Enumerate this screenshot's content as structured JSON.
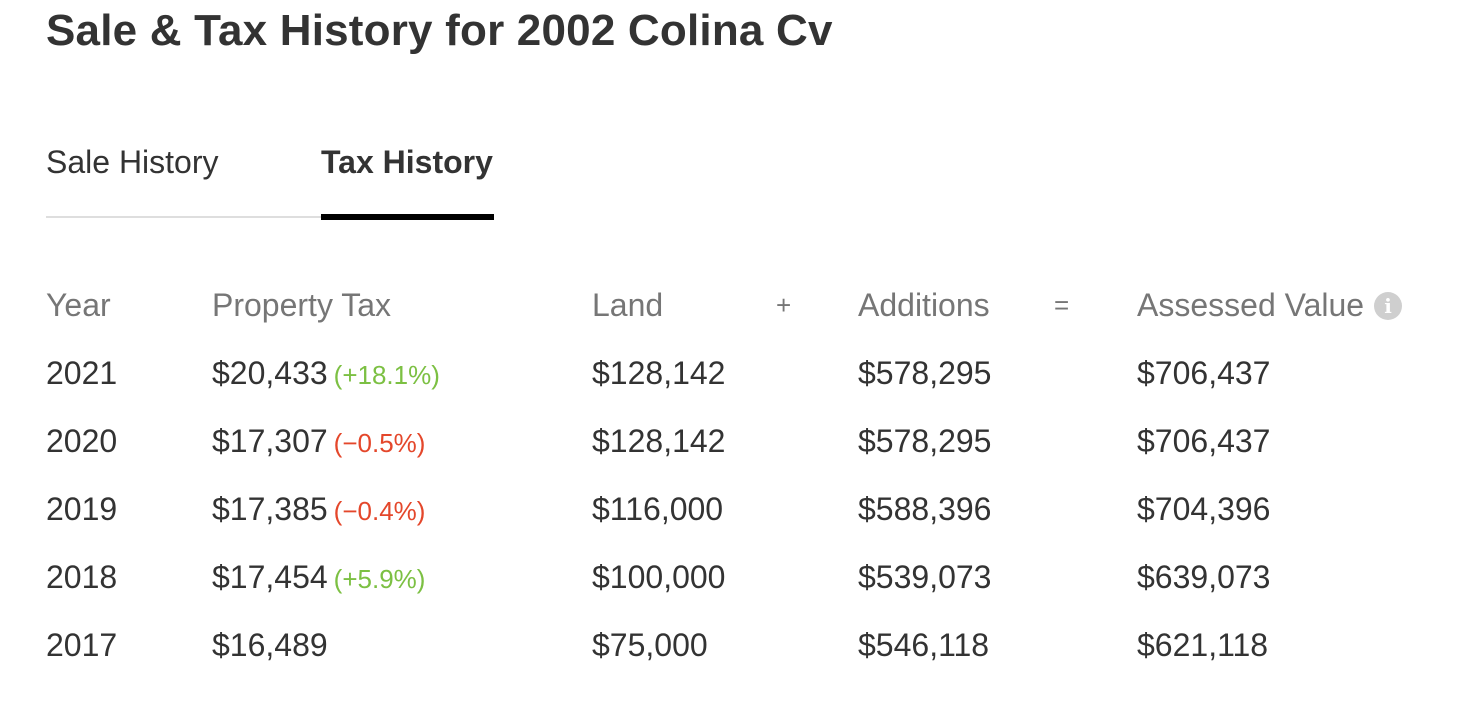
{
  "page": {
    "title": "Sale & Tax History for 2002 Colina Cv"
  },
  "tabs": [
    {
      "label": "Sale History",
      "active": false
    },
    {
      "label": "Tax History",
      "active": true
    }
  ],
  "tax_table": {
    "headers": {
      "year": "Year",
      "property_tax": "Property Tax",
      "land": "Land",
      "plus": "+",
      "additions": "Additions",
      "equals": "=",
      "assessed_value": "Assessed Value"
    },
    "info_icon": "info-icon",
    "rows": [
      {
        "year": "2021",
        "property_tax": "$20,433",
        "change": "(+18.1%)",
        "direction": "up",
        "land": "$128,142",
        "additions": "$578,295",
        "assessed_value": "$706,437"
      },
      {
        "year": "2020",
        "property_tax": "$17,307",
        "change": "(−0.5%)",
        "direction": "down",
        "land": "$128,142",
        "additions": "$578,295",
        "assessed_value": "$706,437"
      },
      {
        "year": "2019",
        "property_tax": "$17,385",
        "change": "(−0.4%)",
        "direction": "down",
        "land": "$116,000",
        "additions": "$588,396",
        "assessed_value": "$704,396"
      },
      {
        "year": "2018",
        "property_tax": "$17,454",
        "change": "(+5.9%)",
        "direction": "up",
        "land": "$100,000",
        "additions": "$539,073",
        "assessed_value": "$639,073"
      },
      {
        "year": "2017",
        "property_tax": "$16,489",
        "change": "",
        "direction": "",
        "land": "$75,000",
        "additions": "$546,118",
        "assessed_value": "$621,118"
      }
    ]
  },
  "colors": {
    "increase": "#7cc043",
    "decrease": "#e4472b",
    "active_tab_underline": "#000000"
  }
}
